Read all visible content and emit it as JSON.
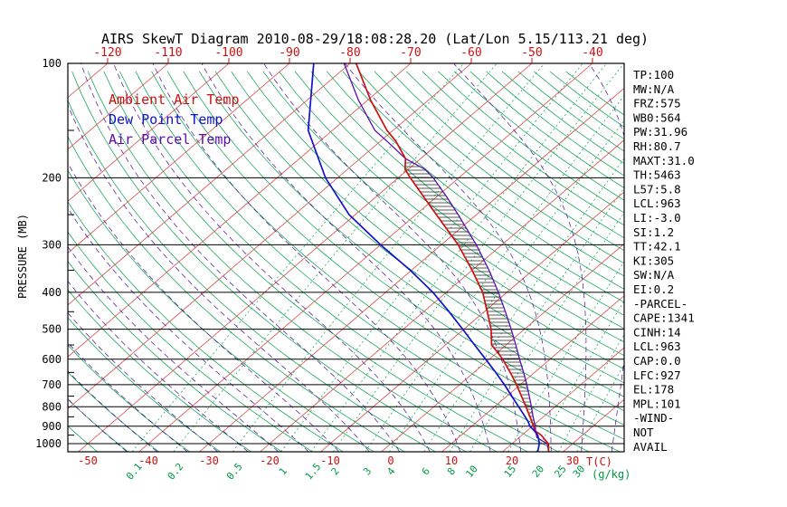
{
  "title": "AIRS SkewT Diagram 2010-08-29/18:08:28.20 (Lat/Lon 5.15/113.21 deg)",
  "legend": [
    {
      "label": "Ambient Air Temp",
      "color": "#cc1111"
    },
    {
      "label": "Dew Point Temp",
      "color": "#1111cc"
    },
    {
      "label": "Air Parcel Temp",
      "color": "#5a0dac"
    }
  ],
  "axes": {
    "pressure_label": "PRESSURE (MB)",
    "pressure_ticks": [
      100,
      200,
      300,
      400,
      500,
      600,
      700,
      800,
      900,
      1000
    ],
    "top_temp_ticks": [
      -120,
      -110,
      -100,
      -90,
      -80,
      -70,
      -60,
      -50,
      -40
    ],
    "bottom_temp_ticks": [
      -50,
      -40,
      -30,
      -20,
      -10,
      0,
      10,
      20,
      30
    ],
    "bottom_temp_label": "T(C)",
    "mixing_ratio_ticks": [
      0.1,
      0.2,
      0.5,
      1,
      1.5,
      2,
      3,
      4,
      6,
      8,
      10,
      15,
      20,
      25,
      30
    ],
    "mixing_ratio_label": "(g/kg)"
  },
  "stats_panel": [
    "TP:100",
    "MW:N/A",
    "FRZ:575",
    "WB0:564",
    "PW:31.96",
    "RH:80.7",
    "MAXT:31.0",
    "TH:5463",
    "L57:5.8",
    "LCL:963",
    "LI:-3.0",
    "SI:1.2",
    "TT:42.1",
    "KI:305",
    "SW:N/A",
    "EI:0.2",
    "-PARCEL-",
    "CAPE:1341",
    "CINH:14",
    "LCL:963",
    "CAP:0.0",
    "LFC:927",
    "EL:178",
    "MPL:101",
    "-WIND-",
    "NOT",
    "AVAIL"
  ],
  "colors": {
    "isotherm": "#d84a4a",
    "dry_adiabat": "#00a04a",
    "mixing_ratio": "#00a04a",
    "moist_adiabat": "#4b0a9b",
    "hatch": "#222222",
    "axis": "#000000",
    "tick_red": "#cc1111",
    "tick_green": "#009a44"
  },
  "chart_data": {
    "type": "line",
    "variant": "skew-t-log-p",
    "title": "AIRS SkewT Diagram 2010-08-29/18:08:28.20 (Lat/Lon 5.15/113.21 deg)",
    "xlabel": "T(C)",
    "ylabel": "PRESSURE (MB)",
    "pressure_range_mb": [
      100,
      1050
    ],
    "temp_range_c_at_1000mb": [
      -50,
      38
    ],
    "pressure_log_scale": true,
    "grid": true,
    "legend_position": "upper-left",
    "parcel": {
      "lcl_mb": 963,
      "lfc_mb": 927,
      "el_mb": 178,
      "cape": 1341,
      "cinh": 14
    },
    "series": [
      {
        "name": "Ambient Air Temp",
        "color": "#cc1111",
        "units": [
          "mb",
          "degC"
        ],
        "points": [
          [
            1050,
            27.6
          ],
          [
            1000,
            26.0
          ],
          [
            975,
            24.6
          ],
          [
            950,
            23.2
          ],
          [
            925,
            21.3
          ],
          [
            900,
            20.2
          ],
          [
            875,
            19.0
          ],
          [
            850,
            17.8
          ],
          [
            800,
            15.2
          ],
          [
            750,
            12.4
          ],
          [
            700,
            9.4
          ],
          [
            650,
            6.0
          ],
          [
            600,
            2.2
          ],
          [
            575,
            0.0
          ],
          [
            550,
            -2.4
          ],
          [
            500,
            -5.5
          ],
          [
            450,
            -9.5
          ],
          [
            400,
            -14.0
          ],
          [
            350,
            -20.0
          ],
          [
            300,
            -27.2
          ],
          [
            250,
            -36.6
          ],
          [
            225,
            -42.0
          ],
          [
            200,
            -48.0
          ],
          [
            190,
            -50.5
          ],
          [
            178,
            -52.5
          ],
          [
            160,
            -57.5
          ],
          [
            150,
            -61.0
          ],
          [
            125,
            -69.5
          ],
          [
            100,
            -79.0
          ]
        ]
      },
      {
        "name": "Dew Point Temp",
        "color": "#1111cc",
        "units": [
          "mb",
          "degC"
        ],
        "points": [
          [
            1050,
            25.8
          ],
          [
            1000,
            24.5
          ],
          [
            975,
            23.6
          ],
          [
            950,
            22.6
          ],
          [
            925,
            21.2
          ],
          [
            900,
            19.6
          ],
          [
            875,
            18.4
          ],
          [
            850,
            17.0
          ],
          [
            800,
            14.0
          ],
          [
            750,
            10.8
          ],
          [
            700,
            7.4
          ],
          [
            650,
            3.6
          ],
          [
            600,
            -0.6
          ],
          [
            550,
            -5.2
          ],
          [
            500,
            -10.2
          ],
          [
            450,
            -15.8
          ],
          [
            400,
            -22.2
          ],
          [
            350,
            -30.2
          ],
          [
            300,
            -40.0
          ],
          [
            250,
            -51.0
          ],
          [
            200,
            -62.0
          ],
          [
            150,
            -74.0
          ],
          [
            100,
            -86.0
          ]
        ]
      },
      {
        "name": "Air Parcel Temp",
        "color": "#5a0dac",
        "units": [
          "mb",
          "degC"
        ],
        "points": [
          [
            1050,
            27.6
          ],
          [
            1000,
            25.8
          ],
          [
            980,
            24.2
          ],
          [
            963,
            22.9
          ],
          [
            950,
            22.4
          ],
          [
            925,
            21.4
          ],
          [
            900,
            20.5
          ],
          [
            875,
            19.4
          ],
          [
            850,
            18.3
          ],
          [
            800,
            16.1
          ],
          [
            750,
            13.7
          ],
          [
            700,
            11.1
          ],
          [
            650,
            8.2
          ],
          [
            600,
            5.0
          ],
          [
            550,
            1.6
          ],
          [
            500,
            -2.2
          ],
          [
            450,
            -6.5
          ],
          [
            400,
            -11.4
          ],
          [
            350,
            -17.2
          ],
          [
            300,
            -24.2
          ],
          [
            250,
            -33.0
          ],
          [
            225,
            -38.2
          ],
          [
            200,
            -44.2
          ],
          [
            190,
            -47.2
          ],
          [
            178,
            -52.5
          ],
          [
            160,
            -59.0
          ],
          [
            150,
            -63.0
          ],
          [
            125,
            -71.5
          ],
          [
            100,
            -81.0
          ]
        ]
      }
    ]
  }
}
